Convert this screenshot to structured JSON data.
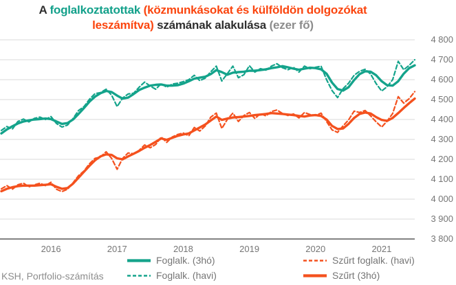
{
  "title": {
    "prefix": "A",
    "employed": "foglalkoztatottak",
    "excluded": "(közmunkásokat és külföldön dolgozókat leszámítva)",
    "rest": "számának alakulása",
    "unit": "(ezer fő)"
  },
  "source": "KSH, Portfolio-számítás",
  "colors": {
    "teal": "#14A38B",
    "orange": "#F4511E",
    "title_dark": "#2E2E2E",
    "title_teal": "#12A08A",
    "title_orange": "#FB450E",
    "title_gray": "#8C8C8C",
    "axis_text": "#757575",
    "gridline": "#D9D9D9",
    "axis_line": "#595959"
  },
  "legend": {
    "items": [
      {
        "label": "Foglalk. (3hó)",
        "color": "teal",
        "style": "solid"
      },
      {
        "label": "Foglalk. (havi)",
        "color": "teal",
        "style": "dashed"
      },
      {
        "label": "Szűrt foglalk. (havi)",
        "color": "orange",
        "style": "dashed"
      },
      {
        "label": "Szűrt (3hó)",
        "color": "orange",
        "style": "solid"
      }
    ]
  },
  "chart_data": {
    "type": "line",
    "title": "A foglalkoztatottak (közmunkásokat és külföldön dolgozókat leszámítva) számának alakulása (ezer fő)",
    "x_unit": "month",
    "x_start": "2015-04",
    "x_end": "2021-07",
    "x_ticks": [
      "2016",
      "2017",
      "2018",
      "2019",
      "2020",
      "2021"
    ],
    "y_ticks": [
      "4 800",
      "4 700",
      "4 600",
      "4 500",
      "4 400",
      "4 300",
      "4 200",
      "4 100",
      "4 000",
      "3 900",
      "3 800"
    ],
    "ylim": [
      3800,
      4800
    ],
    "grid": "horizontal",
    "legend_position": "bottom",
    "series": [
      {
        "name": "Foglalk. (3hó)",
        "color": "teal",
        "style": "solid",
        "values": [
          4330,
          4350,
          4366,
          4380,
          4390,
          4396,
          4400,
          4402,
          4405,
          4402,
          4390,
          4378,
          4382,
          4400,
          4428,
          4458,
          4490,
          4515,
          4532,
          4543,
          4538,
          4520,
          4505,
          4510,
          4528,
          4548,
          4560,
          4570,
          4574,
          4576,
          4570,
          4570,
          4572,
          4580,
          4592,
          4605,
          4610,
          4615,
          4628,
          4648,
          4638,
          4625,
          4635,
          4638,
          4640,
          4645,
          4645,
          4648,
          4652,
          4658,
          4662,
          4668,
          4662,
          4655,
          4650,
          4655,
          4660,
          4658,
          4652,
          4630,
          4585,
          4553,
          4545,
          4562,
          4598,
          4628,
          4642,
          4640,
          4622,
          4592,
          4572,
          4570,
          4592,
          4630,
          4658,
          4672
        ]
      },
      {
        "name": "Foglalk. (havi)",
        "color": "teal",
        "style": "dashed",
        "values": [
          4345,
          4365,
          4352,
          4390,
          4402,
          4388,
          4406,
          4412,
          4400,
          4415,
          4380,
          4362,
          4372,
          4405,
          4445,
          4465,
          4502,
          4530,
          4535,
          4552,
          4522,
          4465,
          4508,
          4528,
          4532,
          4562,
          4588,
          4568,
          4552,
          4580,
          4562,
          4578,
          4582,
          4590,
          4600,
          4622,
          4595,
          4608,
          4640,
          4668,
          4593,
          4630,
          4668,
          4610,
          4625,
          4670,
          4638,
          4655,
          4648,
          4668,
          4680,
          4660,
          4650,
          4662,
          4638,
          4668,
          4655,
          4662,
          4668,
          4600,
          4545,
          4510,
          4555,
          4582,
          4622,
          4642,
          4652,
          4628,
          4580,
          4543,
          4565,
          4600,
          4692,
          4650,
          4672,
          4700
        ]
      },
      {
        "name": "Szűrt foglalk. (havi)",
        "color": "orange",
        "style": "dashed",
        "values": [
          4052,
          4068,
          4050,
          4072,
          4080,
          4062,
          4072,
          4080,
          4068,
          4085,
          4050,
          4038,
          4050,
          4082,
          4118,
          4142,
          4178,
          4205,
          4212,
          4238,
          4205,
          4150,
          4205,
          4232,
          4228,
          4245,
          4272,
          4258,
          4275,
          4312,
          4285,
          4312,
          4325,
          4332,
          4318,
          4360,
          4342,
          4368,
          4412,
          4432,
          4355,
          4400,
          4432,
          4390,
          4420,
          4435,
          4405,
          4430,
          4418,
          4440,
          4448,
          4430,
          4420,
          4428,
          4408,
          4435,
          4425,
          4420,
          4432,
          4390,
          4348,
          4335,
          4368,
          4398,
          4442,
          4435,
          4445,
          4418,
          4388,
          4362,
          4392,
          4430,
          4515,
          4482,
          4505,
          4540
        ]
      },
      {
        "name": "Szűrt (3hó)",
        "color": "orange",
        "style": "solid",
        "values": [
          4040,
          4052,
          4060,
          4065,
          4068,
          4068,
          4068,
          4070,
          4072,
          4075,
          4062,
          4052,
          4056,
          4078,
          4108,
          4138,
          4168,
          4195,
          4215,
          4225,
          4222,
          4205,
          4200,
          4215,
          4228,
          4242,
          4258,
          4272,
          4288,
          4305,
          4298,
          4308,
          4318,
          4325,
          4330,
          4345,
          4360,
          4375,
          4395,
          4415,
          4398,
          4405,
          4410,
          4412,
          4415,
          4418,
          4422,
          4425,
          4428,
          4432,
          4430,
          4428,
          4425,
          4422,
          4418,
          4415,
          4420,
          4422,
          4418,
          4400,
          4368,
          4352,
          4355,
          4378,
          4408,
          4428,
          4435,
          4430,
          4412,
          4398,
          4393,
          4408,
          4432,
          4458,
          4482,
          4505
        ]
      }
    ]
  }
}
